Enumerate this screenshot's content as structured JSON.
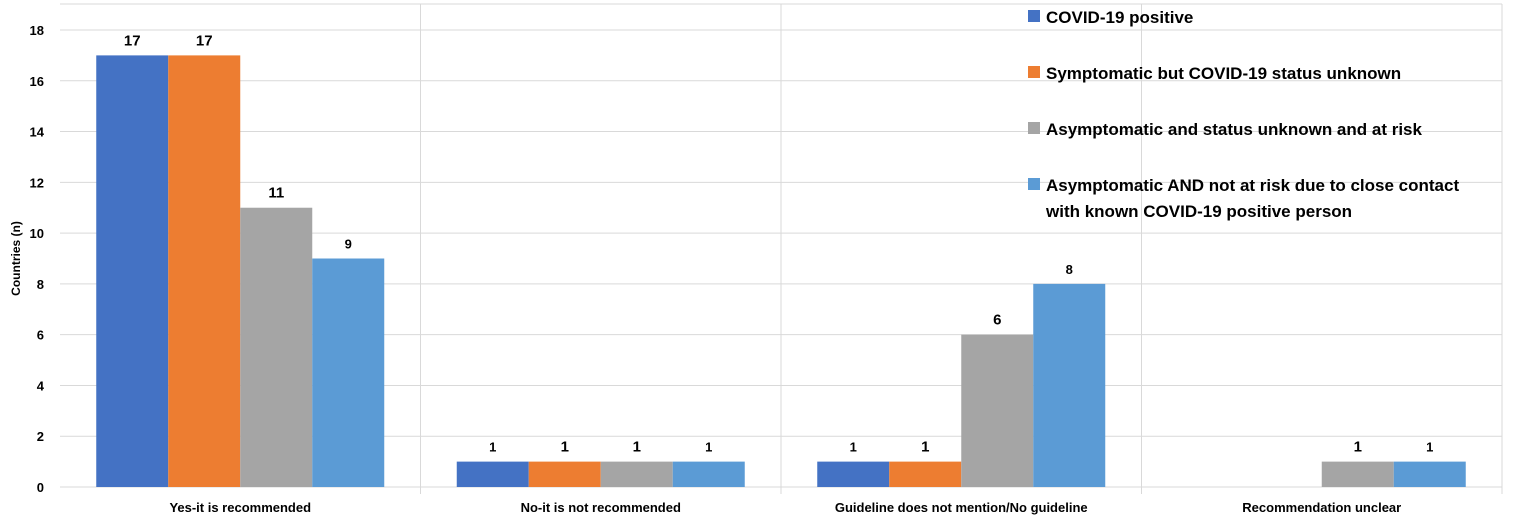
{
  "chart_data": {
    "type": "bar",
    "title": "",
    "xlabel": "",
    "ylabel": "Countries (n)",
    "ylim": [
      0,
      18
    ],
    "yticks": [
      0,
      2,
      4,
      6,
      8,
      10,
      12,
      14,
      16,
      18
    ],
    "grid": true,
    "legend_position": "top-right",
    "categories": [
      "Yes-it is recommended",
      "No-it is not recommended",
      "Guideline does not mention/No guideline",
      "Recommendation unclear"
    ],
    "series": [
      {
        "name": "COVID-19 positive",
        "color": "#4472C4",
        "values": [
          17,
          1,
          1,
          null
        ],
        "labels": [
          "17",
          "1",
          "1",
          ""
        ]
      },
      {
        "name": "Symptomatic but COVID-19 status unknown",
        "color": "#ED7D31",
        "values": [
          17,
          1,
          1,
          null
        ],
        "labels": [
          "17",
          "1",
          "1",
          ""
        ]
      },
      {
        "name": "Asymptomatic and status unknown and at risk",
        "color": "#A5A5A5",
        "values": [
          11,
          1,
          6,
          1
        ],
        "labels": [
          "11",
          "1",
          "6",
          "1"
        ]
      },
      {
        "name": "Asymptomatic AND not at risk due to close contact with known COVID-19 positive person",
        "name_lines": [
          "Asymptomatic AND not at risk due to close contact",
          "with known COVID-19 positive person"
        ],
        "color": "#5B9BD5",
        "values": [
          9,
          1,
          8,
          1
        ],
        "labels": [
          "9",
          "1",
          "8",
          "1"
        ]
      }
    ]
  }
}
